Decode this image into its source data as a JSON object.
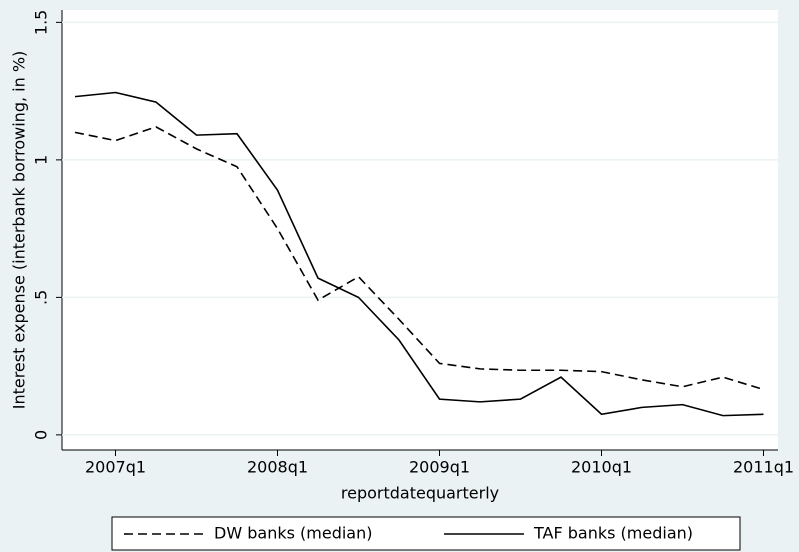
{
  "chart_data": {
    "type": "line",
    "x_label": "reportdatequarterly",
    "y_label": "Interest expense (interbank borrowing, in %)",
    "categories": [
      null,
      "2007q1",
      null,
      null,
      null,
      "2008q1",
      null,
      null,
      null,
      "2009q1",
      null,
      null,
      null,
      "2010q1",
      null,
      null,
      null,
      "2011q1"
    ],
    "series": [
      {
        "name": "DW banks (median)",
        "color": "#000000",
        "style": "dashed",
        "values": [
          1.1,
          1.07,
          1.12,
          1.04,
          0.975,
          0.75,
          0.49,
          0.575,
          0.42,
          0.26,
          0.24,
          0.235,
          0.235,
          0.23,
          0.2,
          0.175,
          0.21,
          0.165
        ]
      },
      {
        "name": "TAF banks (median)",
        "color": "#000000",
        "style": "solid",
        "values": [
          1.23,
          1.245,
          1.21,
          1.09,
          1.095,
          0.89,
          0.57,
          0.5,
          0.345,
          0.13,
          0.12,
          0.13,
          0.21,
          0.075,
          0.1,
          0.11,
          0.07,
          0.075
        ]
      }
    ],
    "ylim": [
      -0.055,
      1.545
    ],
    "yticks": [
      0,
      {
        "value": 0.5,
        "label": ".5"
      },
      1,
      1.5
    ],
    "grid": true,
    "legend": "bottom"
  }
}
